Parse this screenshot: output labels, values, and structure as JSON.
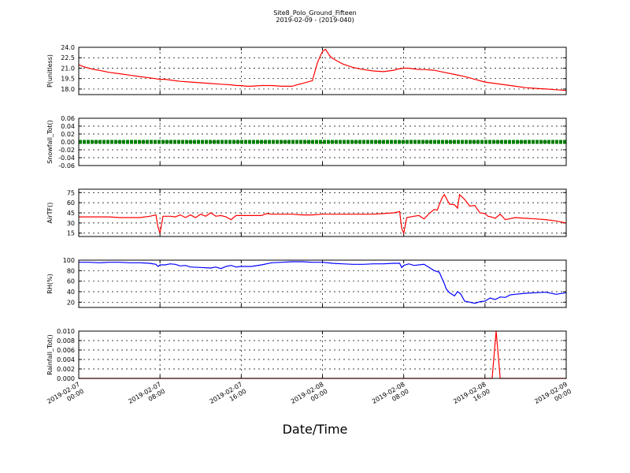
{
  "figure": {
    "title": "Site8_Polo_Ground_Fifteen",
    "subtitle": "2019-02-09 - (2019-040)",
    "xlabel": "Date/Time"
  },
  "chart_data": {
    "type": "line",
    "x_ticks": [
      {
        "line1": "2019-02-07",
        "line2": "00:00"
      },
      {
        "line1": "2019-02-07",
        "line2": "08:00"
      },
      {
        "line1": "2019-02-07",
        "line2": "16:00"
      },
      {
        "line1": "2019-02-08",
        "line2": "00:00"
      },
      {
        "line1": "2019-02-08",
        "line2": "08:00"
      },
      {
        "line1": "2019-02-08",
        "line2": "16:00"
      },
      {
        "line1": "2019-02-09",
        "line2": "00:00"
      }
    ],
    "xlim_hours": [
      0,
      48
    ],
    "grid": true,
    "panels": [
      {
        "ylabel": "P(unitless)",
        "ylim": [
          17.2,
          24.0
        ],
        "yticks": [
          "24.0",
          "22.5",
          "21.0",
          "19.5",
          "18.0"
        ],
        "ytick_values": [
          24.0,
          22.5,
          21.0,
          19.5,
          18.0
        ],
        "color": "#ff0000",
        "series": [
          {
            "x": [
              0,
              0.5,
              1,
              1.5,
              2,
              3,
              4,
              5,
              6,
              7,
              7.5,
              8,
              8.5,
              9,
              10,
              11,
              12,
              13,
              14,
              15,
              15.5,
              16,
              16.5,
              17,
              18,
              18.5,
              19,
              20,
              20.5,
              21,
              21.5,
              22,
              22.5,
              23,
              23.5,
              23.8,
              24,
              24.3,
              24.7,
              25,
              25.5,
              26,
              27,
              28,
              29,
              30,
              31,
              31.5,
              32,
              32.5,
              33,
              33.5,
              34,
              35,
              36,
              37,
              38,
              39,
              40,
              41,
              42,
              43,
              44,
              45,
              46,
              47,
              48
            ],
            "y": [
              21.5,
              21.2,
              21.0,
              20.8,
              20.7,
              20.4,
              20.2,
              20.0,
              19.8,
              19.6,
              19.5,
              19.4,
              19.4,
              19.3,
              19.1,
              19.0,
              18.9,
              18.8,
              18.7,
              18.6,
              18.5,
              18.5,
              18.4,
              18.4,
              18.5,
              18.5,
              18.5,
              18.4,
              18.4,
              18.4,
              18.6,
              18.8,
              19.0,
              19.2,
              21.8,
              22.8,
              23.4,
              23.7,
              22.8,
              22.4,
              22.0,
              21.6,
              21.1,
              20.8,
              20.6,
              20.5,
              20.7,
              20.9,
              21.0,
              21.0,
              20.9,
              20.8,
              20.8,
              20.7,
              20.4,
              20.1,
              19.8,
              19.4,
              19.0,
              18.8,
              18.6,
              18.4,
              18.2,
              18.1,
              18.0,
              17.9,
              17.8
            ]
          }
        ]
      },
      {
        "ylabel": "Snowfall_Tot()",
        "ylim": [
          -0.06,
          0.06
        ],
        "yticks": [
          "0.06",
          "0.04",
          "0.02",
          "0.00",
          "-0.02",
          "-0.04",
          "-0.06"
        ],
        "ytick_values": [
          0.06,
          0.04,
          0.02,
          0.0,
          -0.02,
          -0.04,
          -0.06
        ],
        "color": "#007f00",
        "marker": "o",
        "series": [
          {
            "x": [
              0,
              48
            ],
            "y": [
              0.0,
              0.0
            ]
          }
        ]
      },
      {
        "ylabel": "AirTF()",
        "ylim": [
          10,
          80
        ],
        "yticks": [
          "75",
          "60",
          "45",
          "30",
          "15"
        ],
        "ytick_values": [
          75,
          60,
          45,
          30,
          15
        ],
        "color": "#ff0000",
        "series": [
          {
            "x": [
              0,
              1,
              2,
              3,
              4,
              5,
              6,
              7,
              7.6,
              7.8,
              8,
              8.3,
              9,
              9.5,
              10,
              10.5,
              11,
              11.5,
              12,
              12.5,
              13,
              13.5,
              14,
              14.5,
              15,
              15.5,
              16,
              17,
              18,
              18.5,
              19,
              20,
              21,
              22,
              23,
              24,
              25,
              26,
              27,
              28,
              29,
              30,
              31,
              31.6,
              31.8,
              32,
              32.3,
              33,
              33.5,
              34,
              34.5,
              35,
              35.3,
              35.5,
              35.8,
              36,
              36.5,
              37,
              37.3,
              37.5,
              38,
              38.5,
              39,
              39.5,
              40,
              40.3,
              40.6,
              41,
              41.5,
              42,
              43,
              44,
              45,
              46,
              47,
              48
            ],
            "y": [
              39,
              39,
              39,
              39,
              38,
              38,
              38,
              40,
              42,
              24,
              15,
              40,
              40,
              39,
              42,
              38,
              42,
              38,
              43,
              40,
              45,
              40,
              41,
              39,
              35,
              41,
              41,
              41,
              41,
              44,
              43,
              43,
              43,
              42,
              42,
              43,
              43,
              43,
              43,
              43,
              43,
              44,
              45,
              47,
              22,
              15,
              38,
              40,
              41,
              36,
              44,
              50,
              49,
              57,
              68,
              72,
              58,
              57,
              52,
              72,
              65,
              55,
              56,
              45,
              44,
              40,
              39,
              37,
              43,
              35,
              38,
              37,
              36,
              35,
              33,
              30
            ]
          }
        ]
      },
      {
        "ylabel": "RH(%)",
        "ylim": [
          10,
          100
        ],
        "yticks": [
          "100",
          "80",
          "60",
          "40",
          "20"
        ],
        "ytick_values": [
          100,
          80,
          60,
          40,
          20
        ],
        "color": "#0000ff",
        "series": [
          {
            "x": [
              0,
              1,
              2,
              3,
              4,
              5,
              6,
              7,
              7.6,
              7.8,
              8,
              8.5,
              9,
              9.5,
              10,
              10.5,
              11,
              12,
              13,
              13.5,
              14,
              14.5,
              15,
              15.5,
              16,
              17,
              18,
              19,
              20,
              21,
              22,
              23,
              24,
              25,
              26,
              27,
              28,
              29,
              30,
              31,
              31.6,
              31.8,
              32,
              32.5,
              33,
              34,
              34.5,
              35,
              35.5,
              36,
              36.2,
              36.5,
              37,
              37.3,
              37.6,
              38,
              38.5,
              39,
              39.5,
              40,
              40.5,
              41,
              41.5,
              42,
              42.5,
              43,
              44,
              45,
              46,
              47,
              48
            ],
            "y": [
              96,
              96,
              95,
              96,
              96,
              95,
              95,
              94,
              92,
              88,
              91,
              91,
              93,
              92,
              89,
              90,
              87,
              86,
              85,
              87,
              84,
              88,
              90,
              87,
              88,
              88,
              91,
              95,
              96,
              97,
              97,
              96,
              96,
              94,
              93,
              92,
              92,
              93,
              93,
              94,
              94,
              86,
              90,
              93,
              90,
              92,
              86,
              80,
              77,
              55,
              45,
              38,
              32,
              40,
              36,
              22,
              20,
              18,
              21,
              22,
              28,
              25,
              30,
              29,
              34,
              35,
              37,
              38,
              39,
              35,
              38
            ]
          }
        ]
      },
      {
        "ylabel": "Rainfall_Tot()",
        "ylim": [
          0.0,
          0.01
        ],
        "yticks": [
          "0.010",
          "0.008",
          "0.006",
          "0.004",
          "0.002",
          "0.000"
        ],
        "ytick_values": [
          0.01,
          0.008,
          0.006,
          0.004,
          0.002,
          0.0
        ],
        "color": "#ff0000",
        "series": [
          {
            "x": [
              0,
              40.7,
              41.1,
              41.5,
              48
            ],
            "y": [
              0.0,
              0.0,
              0.01,
              0.0,
              0.0
            ]
          }
        ]
      }
    ]
  }
}
